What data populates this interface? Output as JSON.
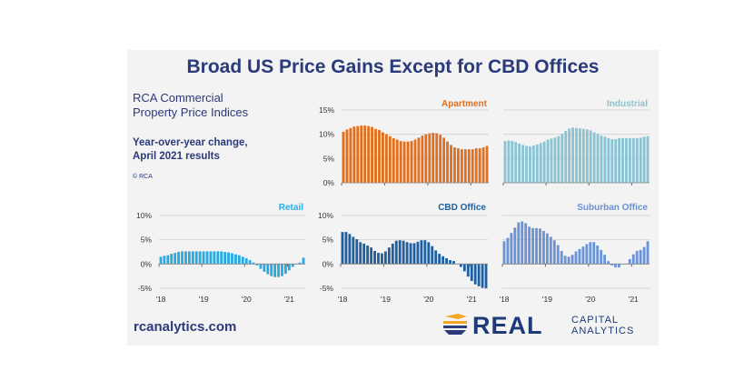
{
  "title": "Broad US Price Gains Except for CBD Offices",
  "subtitle": {
    "line1": "RCA Commercial",
    "line2": "Property Price Indices",
    "line3": "Year-over-year change,",
    "line4": "April 2021 results"
  },
  "copyright": "© RCA",
  "website": "rcanalytics.com",
  "logo": {
    "word": "REAL",
    "line1": "CAPITAL",
    "line2": "ANALYTICS"
  },
  "colors": {
    "title": "#2b3a7a",
    "apartment": "#e07020",
    "industrial": "#8cc3d3",
    "retail": "#29abe2",
    "cbd": "#1f5fa0",
    "suburban": "#6b93d6",
    "grid": "#d4d4d4"
  },
  "chart_data": [
    {
      "type": "bar",
      "title": "Apartment",
      "xticks": [
        "'18",
        "'19",
        "'20",
        "'21"
      ],
      "show_xticks": false,
      "yticks": [
        "0%",
        "5%",
        "10%",
        "15%"
      ],
      "ytick_values": [
        0,
        5,
        10,
        15
      ],
      "ylim": [
        0,
        15
      ],
      "unit": "%",
      "start": "2018-01",
      "values": [
        10.5,
        11,
        11.3,
        11.6,
        11.7,
        11.8,
        11.8,
        11.7,
        11.5,
        11.1,
        10.9,
        10.4,
        10.0,
        9.6,
        9.2,
        8.9,
        8.6,
        8.5,
        8.5,
        8.6,
        8.9,
        9.3,
        9.7,
        10.0,
        10.2,
        10.3,
        10.2,
        9.9,
        9.3,
        8.5,
        7.8,
        7.3,
        7.1,
        6.9,
        6.9,
        6.9,
        6.9,
        7.1,
        7.1,
        7.3,
        7.6
      ]
    },
    {
      "type": "bar",
      "title": "Industrial",
      "xticks": [
        "'18",
        "'19",
        "'20",
        "'21"
      ],
      "show_xticks": false,
      "yticks": [],
      "ytick_values": [
        0,
        5,
        10,
        15
      ],
      "ylim": [
        0,
        15
      ],
      "unit": "%",
      "start": "2018-01",
      "values": [
        8.6,
        8.7,
        8.6,
        8.4,
        8.1,
        7.8,
        7.6,
        7.5,
        7.7,
        7.9,
        8.2,
        8.5,
        8.9,
        9.1,
        9.3,
        9.6,
        10.1,
        10.7,
        11.2,
        11.4,
        11.3,
        11.2,
        11.1,
        11.0,
        10.8,
        10.4,
        10.1,
        9.7,
        9.5,
        9.2,
        9.0,
        9.0,
        9.2,
        9.2,
        9.2,
        9.2,
        9.2,
        9.2,
        9.3,
        9.5,
        9.6
      ]
    },
    {
      "type": "bar",
      "title": "Retail",
      "xticks": [
        "'18",
        "'19",
        "'20",
        "'21"
      ],
      "show_xticks": true,
      "yticks": [
        "-5%",
        "0%",
        "5%",
        "10%"
      ],
      "ytick_values": [
        -5,
        0,
        5,
        10
      ],
      "ylim": [
        -5,
        10
      ],
      "unit": "%",
      "start": "2018-01",
      "values": [
        1.5,
        1.7,
        1.8,
        2.1,
        2.3,
        2.5,
        2.6,
        2.6,
        2.6,
        2.6,
        2.6,
        2.6,
        2.6,
        2.6,
        2.6,
        2.6,
        2.6,
        2.6,
        2.5,
        2.4,
        2.2,
        2.0,
        1.8,
        1.5,
        1.2,
        0.8,
        0.3,
        -0.3,
        -1.0,
        -1.6,
        -2.1,
        -2.5,
        -2.7,
        -2.7,
        -2.5,
        -2.0,
        -1.3,
        -0.6,
        0,
        0.3,
        1.3
      ]
    },
    {
      "type": "bar",
      "title": "CBD Office",
      "xticks": [
        "'18",
        "'19",
        "'20",
        "'21"
      ],
      "show_xticks": true,
      "yticks": [
        "-5%",
        "0%",
        "5%",
        "10%"
      ],
      "ytick_values": [
        -5,
        0,
        5,
        10
      ],
      "ylim": [
        -5,
        10
      ],
      "unit": "%",
      "start": "2018-01",
      "values": [
        6.6,
        6.6,
        6.2,
        5.6,
        5.1,
        4.5,
        4.2,
        3.8,
        3.4,
        2.7,
        2.3,
        2.2,
        2.6,
        3.4,
        4.2,
        4.8,
        4.9,
        4.8,
        4.5,
        4.3,
        4.3,
        4.6,
        4.9,
        4.9,
        4.5,
        3.7,
        2.8,
        2.1,
        1.6,
        1.2,
        0.8,
        0.6,
        0,
        -0.6,
        -1.5,
        -2.6,
        -3.5,
        -4.2,
        -4.6,
        -4.9,
        -5.0
      ]
    },
    {
      "type": "bar",
      "title": "Suburban Office",
      "xticks": [
        "'18",
        "'19",
        "'20",
        "'21"
      ],
      "show_xticks": true,
      "yticks": [],
      "ytick_values": [
        -5,
        0,
        5,
        10
      ],
      "ylim": [
        -5,
        10
      ],
      "unit": "%",
      "start": "2018-01",
      "values": [
        4.7,
        5.4,
        6.4,
        7.5,
        8.6,
        8.8,
        8.4,
        7.7,
        7.4,
        7.4,
        7.3,
        6.8,
        6.3,
        5.6,
        4.9,
        3.9,
        2.7,
        1.7,
        1.5,
        1.9,
        2.6,
        3.1,
        3.6,
        4.1,
        4.5,
        4.5,
        3.8,
        2.9,
        1.9,
        0.6,
        -0.3,
        -0.7,
        -0.7,
        0,
        0,
        1.0,
        2.0,
        2.7,
        2.9,
        3.5,
        4.7
      ]
    }
  ]
}
